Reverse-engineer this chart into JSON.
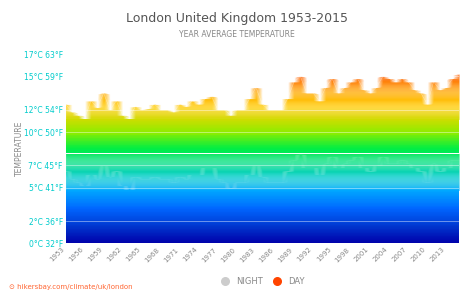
{
  "title": "London United Kingdom 1953-2015",
  "subtitle": "YEAR AVERAGE TEMPERATURE",
  "xlabel_watermark": "hikersbay.com/climate/uk/london",
  "years": [
    1953,
    1954,
    1955,
    1956,
    1957,
    1958,
    1959,
    1960,
    1961,
    1962,
    1963,
    1964,
    1965,
    1966,
    1967,
    1968,
    1969,
    1970,
    1971,
    1972,
    1973,
    1974,
    1975,
    1976,
    1977,
    1978,
    1979,
    1980,
    1981,
    1982,
    1983,
    1984,
    1985,
    1986,
    1987,
    1988,
    1989,
    1990,
    1991,
    1992,
    1993,
    1994,
    1995,
    1996,
    1997,
    1998,
    1999,
    2000,
    2001,
    2002,
    2003,
    2004,
    2005,
    2006,
    2007,
    2008,
    2009,
    2010,
    2011,
    2012,
    2013,
    2014,
    2015
  ],
  "day_temps": [
    12.5,
    11.8,
    11.5,
    11.2,
    12.8,
    12.2,
    13.5,
    12.0,
    12.8,
    11.5,
    11.2,
    12.3,
    12.0,
    12.1,
    12.5,
    12.0,
    12.0,
    11.8,
    12.5,
    12.3,
    12.8,
    12.5,
    13.0,
    13.2,
    12.0,
    12.0,
    11.5,
    12.0,
    12.0,
    13.0,
    14.0,
    12.5,
    12.0,
    12.0,
    12.0,
    13.0,
    14.5,
    15.0,
    13.5,
    13.5,
    12.8,
    14.0,
    14.8,
    13.5,
    14.0,
    14.5,
    14.8,
    13.8,
    13.5,
    14.0,
    15.0,
    14.8,
    14.5,
    14.8,
    14.5,
    13.8,
    13.5,
    12.5,
    14.5,
    13.8,
    14.0,
    14.8,
    15.2
  ],
  "night_temps": [
    6.5,
    5.8,
    5.5,
    5.2,
    6.2,
    5.8,
    7.0,
    6.0,
    6.5,
    5.2,
    4.8,
    6.0,
    5.8,
    5.8,
    6.0,
    5.8,
    5.8,
    5.5,
    6.0,
    5.8,
    6.2,
    6.2,
    6.8,
    6.8,
    5.8,
    5.5,
    5.0,
    5.5,
    5.5,
    6.2,
    7.0,
    6.0,
    5.5,
    5.5,
    5.5,
    6.5,
    7.5,
    8.0,
    6.8,
    6.8,
    6.2,
    7.2,
    7.8,
    6.8,
    7.2,
    7.5,
    7.8,
    6.8,
    6.5,
    7.0,
    7.8,
    7.2,
    7.2,
    7.5,
    7.2,
    6.8,
    6.5,
    5.5,
    7.2,
    6.5,
    6.8,
    7.5,
    7.5
  ],
  "yticks_c": [
    0,
    2,
    5,
    7,
    10,
    12,
    15,
    17
  ],
  "yticks_f": [
    32,
    36,
    41,
    45,
    50,
    54,
    59,
    63
  ],
  "ymin": 0,
  "ymax": 17,
  "xticks": [
    1953,
    1956,
    1959,
    1962,
    1965,
    1968,
    1971,
    1974,
    1977,
    1980,
    1983,
    1986,
    1989,
    1992,
    1995,
    1998,
    2001,
    2004,
    2007,
    2010,
    2013
  ],
  "background_color": "#ffffff",
  "title_color": "#555555",
  "subtitle_color": "#888888",
  "tick_label_color": "#00cccc",
  "gradient_colors": [
    "#0000aa",
    "#0033cc",
    "#0066ff",
    "#00aaff",
    "#00cccc",
    "#00dd88",
    "#00ee44",
    "#88ee00",
    "#ccdd00",
    "#ffcc00",
    "#ffaa00",
    "#ff6600",
    "#ff3300"
  ],
  "gradient_positions": [
    0.0,
    0.08,
    0.18,
    0.28,
    0.35,
    0.42,
    0.5,
    0.58,
    0.65,
    0.72,
    0.8,
    0.88,
    1.0
  ],
  "night_legend_color": "#cccccc",
  "day_legend_color": "#ff4400",
  "watermark_color": "#ff6633"
}
